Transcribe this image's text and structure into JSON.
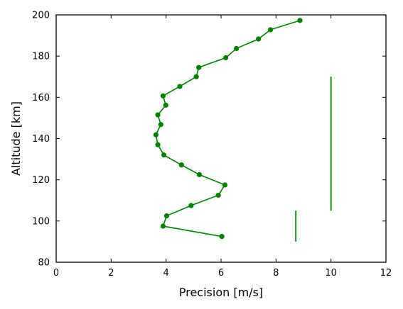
{
  "chart_data": {
    "type": "line",
    "title": "",
    "xlabel": "Precision [m/s]",
    "ylabel": "Altitude [km]",
    "xlim": [
      0,
      12
    ],
    "ylim": [
      80,
      200
    ],
    "xticks": [
      0,
      2,
      4,
      6,
      8,
      10,
      12
    ],
    "yticks": [
      80,
      100,
      120,
      140,
      160,
      180,
      200
    ],
    "grid": false,
    "line_color": "#008000",
    "series": [
      {
        "points": [
          {
            "x": 6.03,
            "y": 92.5
          },
          {
            "x": 3.89,
            "y": 97.5
          },
          {
            "x": 4.02,
            "y": 102.5
          },
          {
            "x": 4.91,
            "y": 107.5
          },
          {
            "x": 5.9,
            "y": 112.5
          },
          {
            "x": 6.14,
            "y": 117.5
          },
          {
            "x": 5.21,
            "y": 122.5
          },
          {
            "x": 4.56,
            "y": 127.2
          },
          {
            "x": 3.92,
            "y": 132.0
          },
          {
            "x": 3.7,
            "y": 137.0
          },
          {
            "x": 3.63,
            "y": 141.8
          },
          {
            "x": 3.81,
            "y": 146.8
          },
          {
            "x": 3.7,
            "y": 151.5
          },
          {
            "x": 3.99,
            "y": 156.2
          },
          {
            "x": 3.89,
            "y": 160.7
          },
          {
            "x": 4.5,
            "y": 165.3
          },
          {
            "x": 5.1,
            "y": 170.0
          },
          {
            "x": 5.19,
            "y": 174.5
          },
          {
            "x": 6.17,
            "y": 179.2
          },
          {
            "x": 6.56,
            "y": 183.7
          },
          {
            "x": 7.36,
            "y": 188.3
          },
          {
            "x": 7.8,
            "y": 192.8
          },
          {
            "x": 8.87,
            "y": 197.3
          }
        ]
      }
    ],
    "vertical_segments": [
      {
        "x": 8.72,
        "y_start": 90,
        "y_end": 105
      },
      {
        "x": 10.0,
        "y_start": 105,
        "y_end": 170
      }
    ]
  }
}
